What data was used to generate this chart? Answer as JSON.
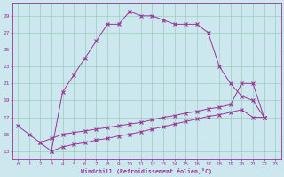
{
  "xlabel": "Windchill (Refroidissement éolien,°C)",
  "background_color": "#cce8ee",
  "grid_color": "#99ccbb",
  "line_color": "#993399",
  "spine_color": "#993399",
  "xlim": [
    -0.5,
    23.5
  ],
  "ylim": [
    12,
    30.5
  ],
  "yticks": [
    13,
    15,
    17,
    19,
    21,
    23,
    25,
    27,
    29
  ],
  "xticks": [
    0,
    1,
    2,
    3,
    4,
    5,
    6,
    7,
    8,
    9,
    10,
    11,
    12,
    13,
    14,
    15,
    16,
    17,
    18,
    19,
    20,
    21,
    22,
    23
  ],
  "series1_x": [
    0,
    1,
    2,
    3,
    4,
    5,
    6,
    7,
    8,
    9,
    10,
    11,
    12,
    13,
    14,
    15,
    16,
    17,
    18,
    19,
    20,
    21,
    22
  ],
  "series1_y": [
    16,
    15,
    14,
    13,
    20,
    22,
    24,
    26,
    28,
    28,
    29.5,
    29,
    29,
    28.5,
    28,
    28,
    28,
    27,
    23,
    21,
    19.5,
    19,
    17
  ],
  "series2_x": [
    2,
    3,
    4,
    5,
    6,
    7,
    8,
    9,
    10,
    11,
    12,
    13,
    14,
    15,
    16,
    17,
    18,
    19,
    20,
    21,
    22
  ],
  "series2_y": [
    14,
    14.5,
    15,
    15.2,
    15.4,
    15.6,
    15.8,
    16,
    16.2,
    16.4,
    16.7,
    17,
    17.2,
    17.5,
    17.7,
    18,
    18.2,
    18.5,
    21,
    21,
    17
  ],
  "series3_x": [
    3,
    4,
    5,
    6,
    7,
    8,
    9,
    10,
    11,
    12,
    13,
    14,
    15,
    16,
    17,
    18,
    19,
    20,
    21,
    22
  ],
  "series3_y": [
    13,
    13.5,
    13.8,
    14,
    14.3,
    14.5,
    14.8,
    15,
    15.3,
    15.6,
    15.9,
    16.2,
    16.5,
    16.8,
    17.1,
    17.3,
    17.6,
    17.9,
    17,
    17
  ]
}
